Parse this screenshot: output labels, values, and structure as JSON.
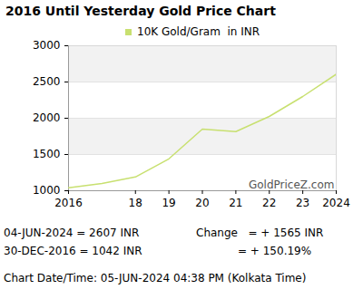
{
  "chart_data": {
    "type": "line",
    "title": "2016 Until Yesterday Gold Price Chart",
    "x": [
      2016,
      2017,
      2018,
      2019,
      2020,
      2021,
      2022,
      2023,
      2024
    ],
    "series": [
      {
        "name": "10K Gold/Gram  in INR",
        "color": "#c8e070",
        "values": [
          1042,
          1100,
          1190,
          1440,
          1850,
          1815,
          2025,
          2300,
          2607
        ]
      }
    ],
    "xlim": [
      2016,
      2024
    ],
    "xticks": [
      2016,
      {
        "value": 2018,
        "label": "18"
      },
      {
        "value": 2019,
        "label": "19"
      },
      {
        "value": 2020,
        "label": "20"
      },
      {
        "value": 2021,
        "label": "21"
      },
      {
        "value": 2022,
        "label": "22"
      },
      {
        "value": 2023,
        "label": "23"
      },
      2024
    ],
    "ylim": [
      1000,
      3000
    ],
    "yticks": [
      1000,
      1500,
      2000,
      2500,
      3000
    ],
    "grid": true,
    "annotations": {
      "watermark": "GoldPriceZ.com",
      "latest": "04-JUN-2024 = 2607 INR",
      "first": "30-DEC-2016 = 1042 INR",
      "change": "Change   = + 1565 INR",
      "change_percent": "= + 150.19%",
      "chart_date": "Chart Date/Time: 05-JUN-2024 04:38 PM (Kolkata Time)"
    }
  }
}
